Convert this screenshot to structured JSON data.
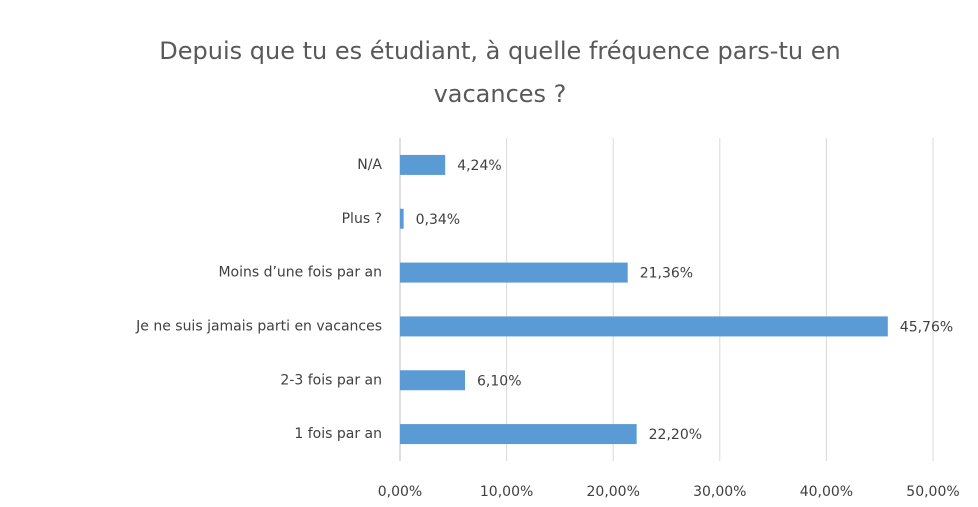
{
  "chart_data": {
    "type": "bar",
    "orientation": "horizontal",
    "title": "Depuis que tu es étudiant, à quelle fréquence pars-tu en vacances ?",
    "categories": [
      "N/A",
      "Plus ?",
      "Moins d’une fois par an",
      "Je ne suis jamais parti en vacances",
      "2-3 fois par an",
      "1 fois par an"
    ],
    "values": [
      4.24,
      0.34,
      21.36,
      45.76,
      6.1,
      22.2
    ],
    "value_labels": [
      "4,24%",
      "0,34%",
      "21,36%",
      "45,76%",
      "6,10%",
      "22,20%"
    ],
    "color": "#5b9bd5",
    "xlim": [
      0,
      50
    ],
    "xticks": [
      {
        "value": 0,
        "label": "0,00%"
      },
      {
        "value": 10,
        "label": "10,00%"
      },
      {
        "value": 20,
        "label": "20,00%"
      },
      {
        "value": 30,
        "label": "30,00%"
      },
      {
        "value": 40,
        "label": "40,00%"
      },
      {
        "value": 50,
        "label": "50,00%"
      }
    ],
    "grid": true
  }
}
